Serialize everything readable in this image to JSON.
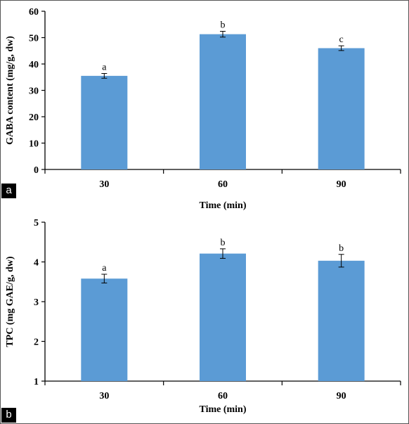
{
  "chart_data": [
    {
      "type": "bar",
      "panel_label": "a",
      "categories": [
        "30",
        "60",
        "90"
      ],
      "values": [
        35.5,
        51.3,
        46.0
      ],
      "errors": [
        0.9,
        1.1,
        0.9
      ],
      "significance": [
        "a",
        "b",
        "c"
      ],
      "xlabel": "Time (min)",
      "ylabel": "GABA content (mg/g, dw)",
      "ylim": [
        0,
        60
      ],
      "yticks": [
        "0",
        "10",
        "20",
        "30",
        "40",
        "50",
        "60"
      ],
      "bar_color": "#5b9bd5",
      "grid": false
    },
    {
      "type": "bar",
      "panel_label": "b",
      "categories": [
        "30",
        "60",
        "90"
      ],
      "values": [
        3.58,
        4.21,
        4.03
      ],
      "errors": [
        0.11,
        0.12,
        0.16
      ],
      "significance": [
        "a",
        "b",
        "b"
      ],
      "xlabel": "Time (min)",
      "ylabel": "TPC (mg GAE/g, dw)",
      "ylim": [
        1,
        5
      ],
      "yticks": [
        "1",
        "2",
        "3",
        "4",
        "5"
      ],
      "bar_color": "#5b9bd5",
      "grid": false
    }
  ]
}
